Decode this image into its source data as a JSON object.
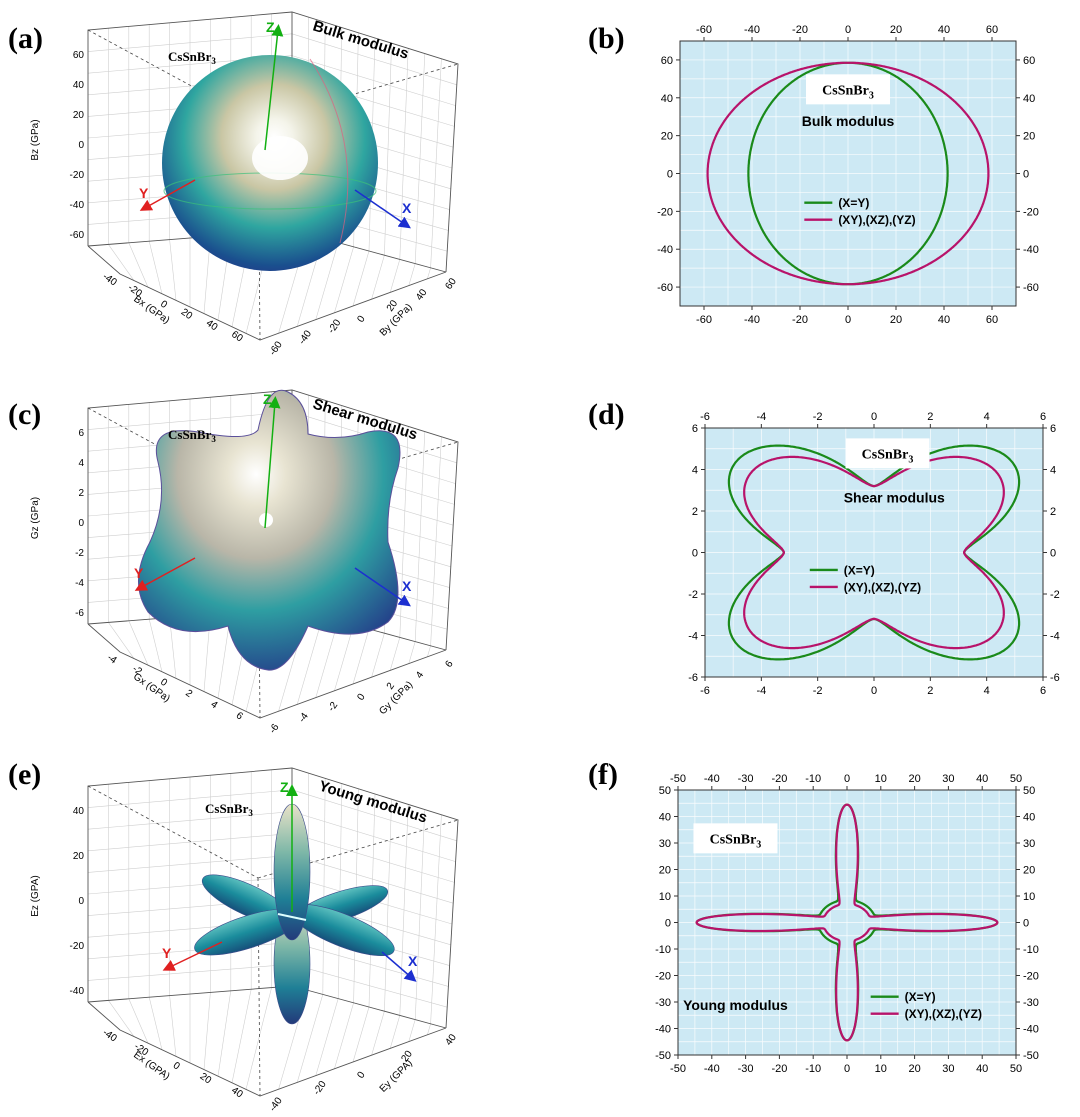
{
  "panel_labels": [
    "(a)",
    "(b)",
    "(c)",
    "(d)",
    "(e)",
    "(f)"
  ],
  "colors": {
    "plot_bg": "#cde9f4",
    "xeqy": "#1a8a1a",
    "xyxzyz": "#b8136a",
    "axis_x": "#1c2fd0",
    "axis_y": "#e02020",
    "axis_z": "#12b012"
  },
  "surface_panels": [
    {
      "id": "a",
      "material": "CsSnBr",
      "material_sub": "3",
      "title": "Bulk modulus",
      "z_axis_label": "Bz (GPa)",
      "x_axis_label": "Bx (GPa)",
      "y_axis_label": "By (GPa)",
      "z_ticks": [
        "60",
        "40",
        "20",
        "0",
        "-20",
        "-40",
        "-60"
      ],
      "x_ticks": [
        "-40",
        "-20",
        "0",
        "20",
        "40",
        "60"
      ],
      "y_ticks": [
        "-60",
        "-40",
        "-20",
        "0",
        "20",
        "40",
        "60"
      ],
      "axes_letters": {
        "x": "X",
        "y": "Y",
        "z": "Z"
      },
      "shape": "sphere"
    },
    {
      "id": "c",
      "material": "CsSnBr",
      "material_sub": "3",
      "title": "Shear modulus",
      "z_axis_label": "Gz (GPa)",
      "x_axis_label": "Gx (GPa)",
      "y_axis_label": "Gy (GPa)",
      "z_ticks": [
        "6",
        "4",
        "2",
        "0",
        "-2",
        "-4",
        "-6"
      ],
      "x_ticks": [
        "-4",
        "-2",
        "0",
        "2",
        "4",
        "6"
      ],
      "y_ticks": [
        "-6",
        "-4",
        "-2",
        "0",
        "2",
        "4",
        "6"
      ],
      "axes_letters": {
        "x": "X",
        "y": "Y",
        "z": "Z"
      },
      "shape": "cube"
    },
    {
      "id": "e",
      "material": "CsSnBr",
      "material_sub": "3",
      "title": "Young modulus",
      "z_axis_label": "Ez (GPA)",
      "x_axis_label": "Ex (GPA)",
      "y_axis_label": "Ey (GPA)",
      "z_ticks": [
        "40",
        "20",
        "0",
        "-20",
        "-40"
      ],
      "x_ticks": [
        "-40",
        "-20",
        "0",
        "20",
        "40"
      ],
      "y_ticks": [
        "-40",
        "-20",
        "0",
        "20",
        "40"
      ],
      "axes_letters": {
        "x": "X",
        "y": "Y",
        "z": "Z"
      },
      "shape": "star"
    }
  ],
  "chart_data": [
    {
      "type": "line",
      "panel": "b",
      "annotation_material": "CsSnBr",
      "annotation_material_sub": "3",
      "annotation_title": "Bulk modulus",
      "xlim": [
        -70,
        70
      ],
      "ylim": [
        -70,
        70
      ],
      "x_ticks": [
        -60,
        -40,
        -20,
        0,
        20,
        40,
        60
      ],
      "y_ticks": [
        -60,
        -40,
        -20,
        0,
        20,
        40,
        60
      ],
      "grid": true,
      "legend_position": "center",
      "series": [
        {
          "name": "(X=Y)",
          "shape": "ellipse",
          "semi_axis_x": 41.5,
          "semi_axis_y": 58.5
        },
        {
          "name": "(XY),(XZ),(YZ)",
          "shape": "ellipse",
          "semi_axis_x": 58.5,
          "semi_axis_y": 58.5
        }
      ]
    },
    {
      "type": "line",
      "panel": "d",
      "annotation_material": "CsSnBr",
      "annotation_material_sub": "3",
      "annotation_title": "Shear modulus",
      "xlim": [
        -6,
        6
      ],
      "ylim": [
        -6,
        6
      ],
      "x_ticks": [
        -6,
        -4,
        -2,
        0,
        2,
        4,
        6
      ],
      "y_ticks": [
        -6,
        -4,
        -2,
        0,
        2,
        4,
        6
      ],
      "grid": true,
      "legend_position": "center",
      "series": [
        {
          "name": "(X=Y)",
          "shape": "butterfly",
          "min_radius": 3.2,
          "corner_radius": 6.6
        },
        {
          "name": "(XY),(XZ),(YZ)",
          "shape": "butterfly",
          "min_radius": 3.2,
          "corner_radius": 5.85
        }
      ]
    },
    {
      "type": "line",
      "panel": "f",
      "annotation_material": "CsSnBr",
      "annotation_material_sub": "3",
      "annotation_title": "Young modulus",
      "xlim": [
        -50,
        50
      ],
      "ylim": [
        -50,
        50
      ],
      "x_ticks": [
        -50,
        -40,
        -30,
        -20,
        -10,
        0,
        10,
        20,
        30,
        40,
        50
      ],
      "y_ticks": [
        -50,
        -40,
        -30,
        -20,
        -10,
        0,
        10,
        20,
        30,
        40,
        50
      ],
      "grid": true,
      "legend_position": "bottom-right",
      "series": [
        {
          "name": "(X=Y)",
          "shape": "cross",
          "axis_radius": 44.5,
          "diagonal_radius": 8.5
        },
        {
          "name": "(XY),(XZ),(YZ)",
          "shape": "cross",
          "axis_radius": 44.5,
          "diagonal_radius": 7.0
        }
      ]
    }
  ]
}
